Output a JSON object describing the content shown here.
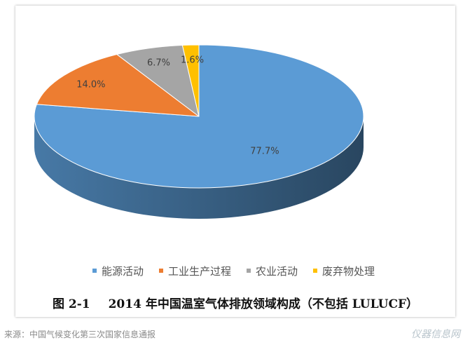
{
  "chart_data": {
    "type": "pie",
    "categories": [
      "能源活动",
      "工业生产过程",
      "农业活动",
      "废弃物处理"
    ],
    "values": [
      77.7,
      14.0,
      6.7,
      1.6
    ],
    "labels": [
      "77.7%",
      "14.0%",
      "6.7%",
      "1.6%"
    ],
    "colors": [
      "#5B9BD5",
      "#ED7D31",
      "#A5A5A5",
      "#FFC000"
    ],
    "style": "3d",
    "legend_position": "bottom"
  },
  "caption": {
    "number": "图 2-1",
    "text": "2014 年中国温室气体排放领域构成（不包括 LULUCF）"
  },
  "source": "来源：中国气候变化第三次国家信息通报",
  "watermark": "仪器信息网"
}
